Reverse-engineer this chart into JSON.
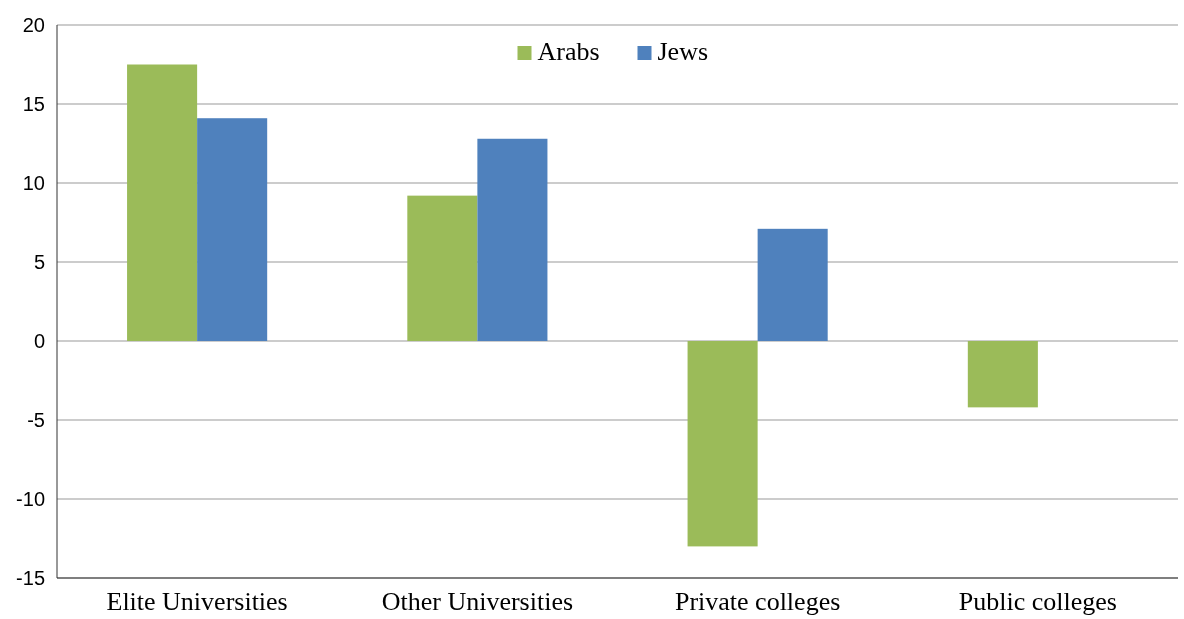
{
  "chart_data": {
    "type": "bar",
    "categories": [
      "Elite Universities",
      "Other Universities",
      "Private colleges",
      "Public colleges"
    ],
    "series": [
      {
        "name": "Arabs",
        "color": "#9bbb59",
        "values": [
          17.5,
          9.2,
          -13.0,
          -4.2
        ]
      },
      {
        "name": "Jews",
        "color": "#4f81bd",
        "values": [
          14.1,
          12.8,
          7.1,
          null
        ]
      }
    ],
    "ylim": [
      -15,
      20
    ],
    "yticks": [
      -15,
      -10,
      -5,
      0,
      5,
      10,
      15,
      20
    ],
    "grid": "y",
    "legend": "top"
  }
}
